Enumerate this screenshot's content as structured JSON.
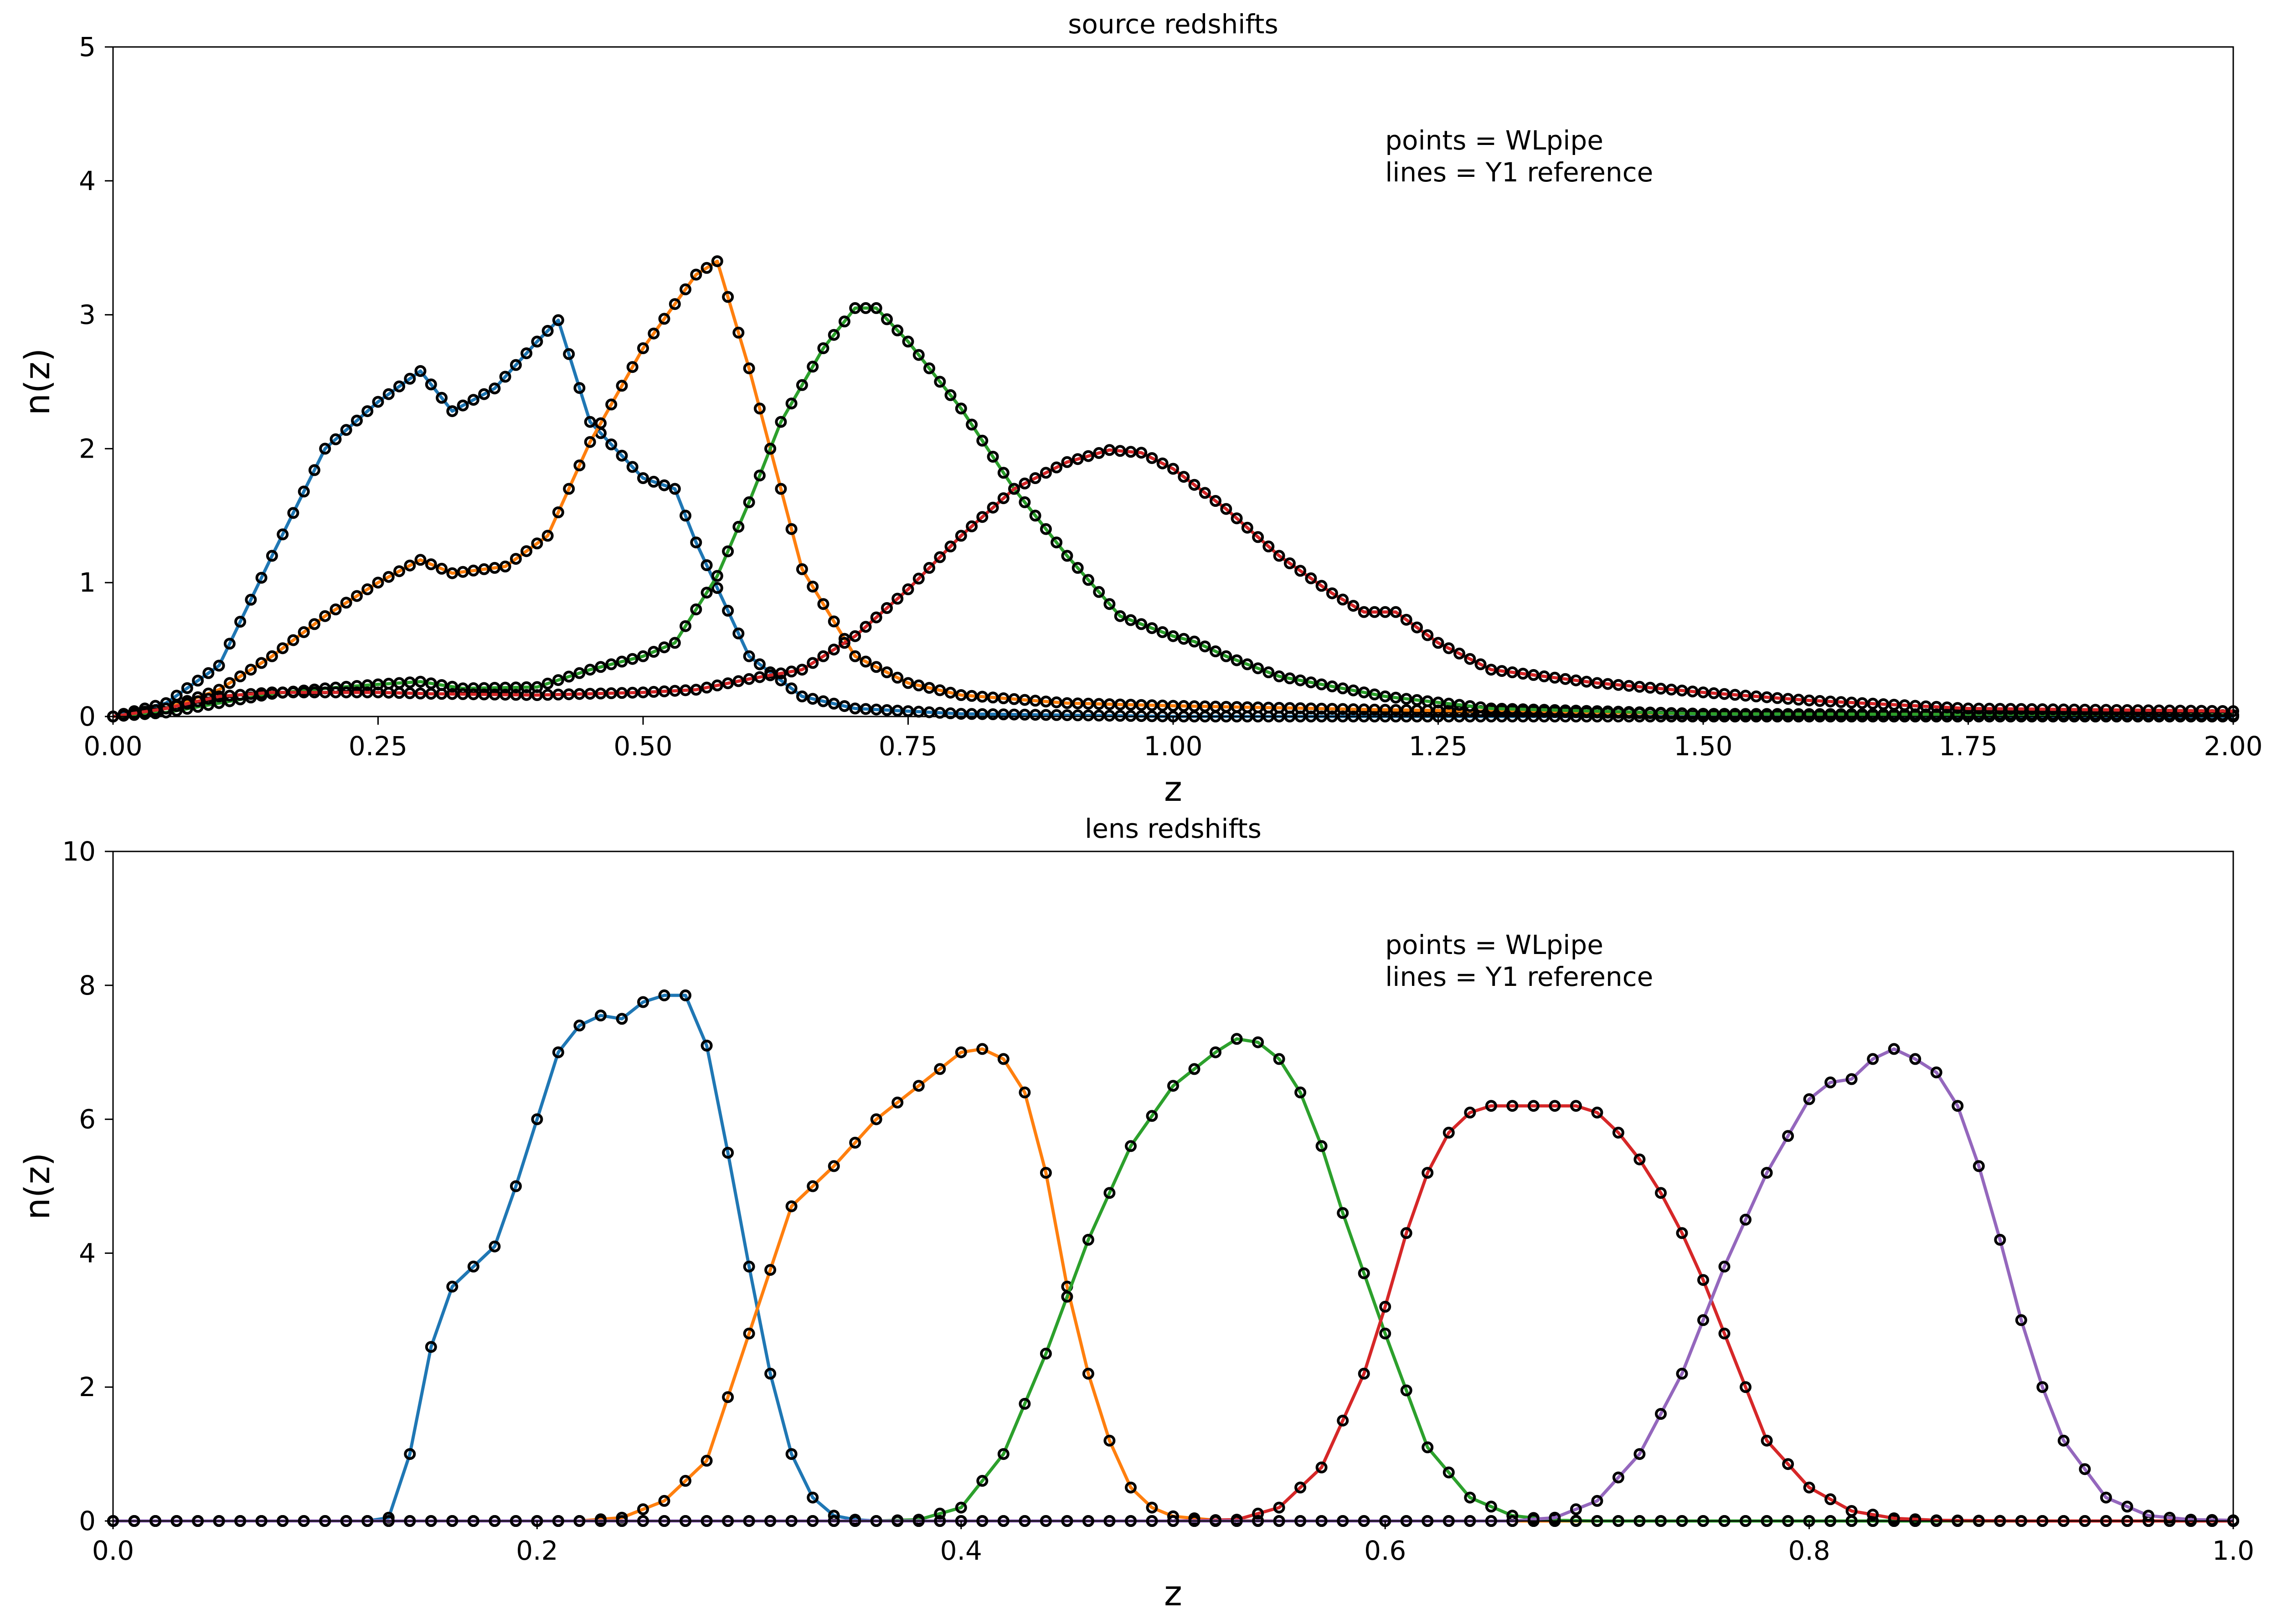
{
  "chart_data": [
    {
      "type": "line",
      "title": "source redshifts",
      "xlabel": "z",
      "ylabel": "n(z)",
      "xlim": [
        0,
        2.0
      ],
      "ylim": [
        0,
        5
      ],
      "xticks": [
        "0.00",
        "0.25",
        "0.50",
        "0.75",
        "1.00",
        "1.25",
        "1.50",
        "1.75",
        "2.00"
      ],
      "yticks": [
        "0",
        "1",
        "2",
        "3",
        "4",
        "5"
      ],
      "annotation": [
        "points = WLpipe",
        "lines = Y1 reference"
      ],
      "grid": false,
      "point_style": "open black circles (WLpipe) on every line sample",
      "series": [
        {
          "color": "#1f77b4",
          "x": [
            0.0,
            0.05,
            0.1,
            0.15,
            0.2,
            0.25,
            0.29,
            0.32,
            0.36,
            0.4,
            0.42,
            0.45,
            0.5,
            0.53,
            0.55,
            0.6,
            0.65,
            0.7,
            0.8,
            1.0,
            1.2,
            1.5,
            2.0
          ],
          "y": [
            0.0,
            0.1,
            0.38,
            1.2,
            2.0,
            2.35,
            2.58,
            2.28,
            2.45,
            2.8,
            2.96,
            2.2,
            1.78,
            1.7,
            1.3,
            0.45,
            0.15,
            0.06,
            0.02,
            0.0,
            0.0,
            0.0,
            0.0
          ]
        },
        {
          "color": "#ff7f0e",
          "x": [
            0.0,
            0.05,
            0.1,
            0.15,
            0.2,
            0.25,
            0.29,
            0.32,
            0.37,
            0.41,
            0.45,
            0.5,
            0.55,
            0.57,
            0.6,
            0.65,
            0.7,
            0.75,
            0.8,
            0.9,
            1.0,
            1.2,
            1.5,
            2.0
          ],
          "y": [
            0.0,
            0.06,
            0.2,
            0.45,
            0.75,
            1.0,
            1.17,
            1.07,
            1.12,
            1.35,
            2.05,
            2.75,
            3.3,
            3.4,
            2.6,
            1.1,
            0.45,
            0.25,
            0.16,
            0.1,
            0.08,
            0.05,
            0.02,
            0.01
          ]
        },
        {
          "color": "#2ca02c",
          "x": [
            0.0,
            0.05,
            0.1,
            0.15,
            0.2,
            0.25,
            0.29,
            0.33,
            0.4,
            0.45,
            0.5,
            0.53,
            0.57,
            0.6,
            0.63,
            0.67,
            0.7,
            0.72,
            0.75,
            0.8,
            0.85,
            0.9,
            0.95,
            1.0,
            1.02,
            1.05,
            1.1,
            1.2,
            1.3,
            1.5,
            2.0
          ],
          "y": [
            0.0,
            0.03,
            0.1,
            0.17,
            0.21,
            0.24,
            0.26,
            0.21,
            0.22,
            0.35,
            0.45,
            0.55,
            1.05,
            1.6,
            2.2,
            2.75,
            3.05,
            3.05,
            2.8,
            2.3,
            1.7,
            1.2,
            0.75,
            0.6,
            0.56,
            0.45,
            0.3,
            0.15,
            0.06,
            0.02,
            0.01
          ]
        },
        {
          "color": "#d62728",
          "x": [
            0.0,
            0.05,
            0.1,
            0.15,
            0.2,
            0.25,
            0.3,
            0.4,
            0.5,
            0.55,
            0.6,
            0.65,
            0.7,
            0.75,
            0.8,
            0.85,
            0.9,
            0.94,
            0.97,
            1.0,
            1.05,
            1.1,
            1.15,
            1.18,
            1.21,
            1.25,
            1.3,
            1.4,
            1.5,
            1.6,
            1.75,
            2.0
          ],
          "y": [
            0.0,
            0.06,
            0.15,
            0.18,
            0.18,
            0.18,
            0.17,
            0.16,
            0.18,
            0.2,
            0.28,
            0.35,
            0.6,
            0.95,
            1.35,
            1.7,
            1.9,
            1.99,
            1.97,
            1.85,
            1.55,
            1.2,
            0.92,
            0.78,
            0.78,
            0.55,
            0.35,
            0.25,
            0.18,
            0.12,
            0.06,
            0.04
          ]
        }
      ]
    },
    {
      "type": "line",
      "title": "lens redshifts",
      "xlabel": "z",
      "ylabel": "n(z)",
      "xlim": [
        0,
        1.0
      ],
      "ylim": [
        0,
        10
      ],
      "xticks": [
        "0.0",
        "0.2",
        "0.4",
        "0.6",
        "0.8",
        "1.0"
      ],
      "yticks": [
        "0",
        "2",
        "4",
        "6",
        "8",
        "10"
      ],
      "annotation": [
        "points = WLpipe",
        "lines = Y1 reference"
      ],
      "grid": false,
      "point_style": "open black circles (WLpipe) every ~0.01 in z",
      "series": [
        {
          "color": "#1f77b4",
          "x": [
            0.0,
            0.12,
            0.13,
            0.14,
            0.15,
            0.16,
            0.17,
            0.18,
            0.19,
            0.2,
            0.21,
            0.22,
            0.23,
            0.24,
            0.25,
            0.26,
            0.27,
            0.28,
            0.29,
            0.3,
            0.31,
            0.32,
            0.33,
            0.34,
            0.35,
            0.36,
            0.4,
            1.0
          ],
          "y": [
            0.0,
            0.0,
            0.05,
            1.0,
            2.6,
            3.5,
            3.8,
            4.1,
            5.0,
            6.0,
            7.0,
            7.4,
            7.55,
            7.5,
            7.75,
            7.85,
            7.85,
            7.1,
            5.5,
            3.8,
            2.2,
            1.0,
            0.35,
            0.08,
            0.02,
            0.0,
            0.0,
            0.0
          ]
        },
        {
          "color": "#ff7f0e",
          "x": [
            0.0,
            0.22,
            0.24,
            0.26,
            0.28,
            0.3,
            0.32,
            0.34,
            0.36,
            0.38,
            0.4,
            0.41,
            0.42,
            0.43,
            0.44,
            0.45,
            0.46,
            0.47,
            0.48,
            0.49,
            0.5,
            0.52,
            0.55,
            1.0
          ],
          "y": [
            0.0,
            0.0,
            0.05,
            0.3,
            0.9,
            2.8,
            4.7,
            5.3,
            6.0,
            6.5,
            7.0,
            7.05,
            6.9,
            6.4,
            5.2,
            3.5,
            2.2,
            1.2,
            0.5,
            0.2,
            0.07,
            0.01,
            0.0,
            0.0
          ]
        },
        {
          "color": "#2ca02c",
          "x": [
            0.0,
            0.36,
            0.38,
            0.4,
            0.42,
            0.44,
            0.46,
            0.48,
            0.5,
            0.52,
            0.53,
            0.54,
            0.55,
            0.56,
            0.57,
            0.58,
            0.6,
            0.62,
            0.64,
            0.66,
            0.68,
            0.7,
            1.0
          ],
          "y": [
            0.0,
            0.0,
            0.02,
            0.2,
            1.0,
            2.5,
            4.2,
            5.6,
            6.5,
            7.0,
            7.2,
            7.15,
            6.9,
            6.4,
            5.6,
            4.6,
            2.8,
            1.1,
            0.35,
            0.08,
            0.01,
            0.0,
            0.0
          ]
        },
        {
          "color": "#d62728",
          "x": [
            0.0,
            0.5,
            0.53,
            0.55,
            0.57,
            0.59,
            0.6,
            0.61,
            0.62,
            0.63,
            0.64,
            0.65,
            0.67,
            0.69,
            0.7,
            0.71,
            0.72,
            0.73,
            0.74,
            0.75,
            0.76,
            0.77,
            0.78,
            0.8,
            0.82,
            0.84,
            0.86,
            0.9,
            1.0
          ],
          "y": [
            0.0,
            0.0,
            0.02,
            0.2,
            0.8,
            2.2,
            3.2,
            4.3,
            5.2,
            5.8,
            6.1,
            6.2,
            6.2,
            6.2,
            6.1,
            5.8,
            5.4,
            4.9,
            4.3,
            3.6,
            2.8,
            2.0,
            1.2,
            0.5,
            0.15,
            0.04,
            0.01,
            0.0,
            0.0
          ]
        },
        {
          "color": "#9467bd",
          "x": [
            0.0,
            0.66,
            0.68,
            0.7,
            0.72,
            0.74,
            0.76,
            0.78,
            0.8,
            0.81,
            0.82,
            0.83,
            0.84,
            0.85,
            0.86,
            0.87,
            0.88,
            0.89,
            0.9,
            0.91,
            0.92,
            0.94,
            0.96,
            0.98,
            1.0
          ],
          "y": [
            0.0,
            0.0,
            0.05,
            0.3,
            1.0,
            2.2,
            3.8,
            5.2,
            6.3,
            6.55,
            6.6,
            6.9,
            7.05,
            6.9,
            6.7,
            6.2,
            5.3,
            4.2,
            3.0,
            2.0,
            1.2,
            0.35,
            0.08,
            0.02,
            0.01
          ]
        }
      ]
    }
  ]
}
